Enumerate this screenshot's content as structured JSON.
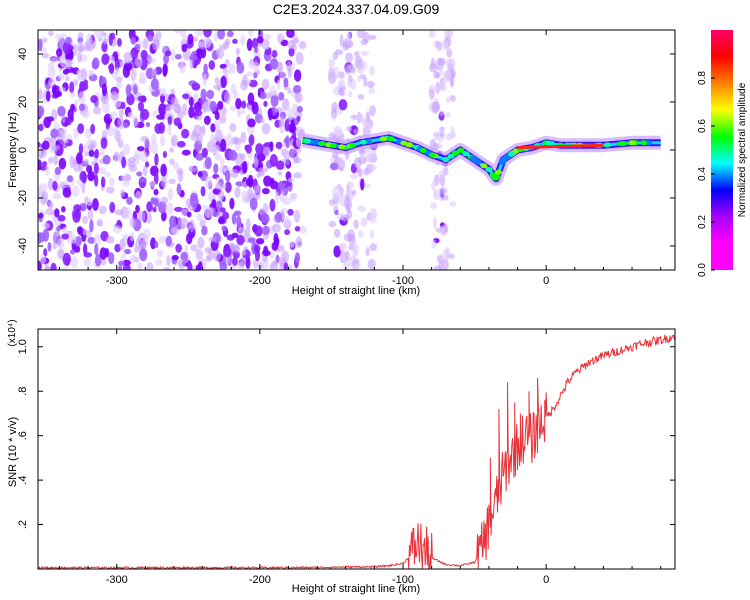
{
  "figure": {
    "title": "C2E3.2024.337.04.09.G09"
  },
  "chart_data": [
    {
      "type": "heatmap",
      "title": "C2E3.2024.337.04.09.G09",
      "xlabel": "Height of straight line (km)",
      "ylabel": "Frequency (Hz)",
      "xlim": [
        -355,
        90
      ],
      "ylim": [
        -50,
        50
      ],
      "xticks": [
        -300,
        -200,
        -100,
        0
      ],
      "yticks": [
        -40,
        -20,
        0,
        20,
        40
      ],
      "colorbar": {
        "label": "Normalized spectral amplitude",
        "range": [
          0,
          1
        ],
        "ticks": [
          0.0,
          0.2,
          0.4,
          0.6,
          0.8
        ],
        "colormap": [
          "#ff00ff",
          "#ff00ff",
          "#aa00ff",
          "#0000ff",
          "#00ffff",
          "#00ff00",
          "#ffff00",
          "#ff8000",
          "#ff0000",
          "#ff0066"
        ]
      },
      "dominant_frequency_track": {
        "x": [
          -170,
          -160,
          -150,
          -140,
          -130,
          -120,
          -110,
          -100,
          -90,
          -80,
          -70,
          -60,
          -50,
          -40,
          -35,
          -30,
          -25,
          -20,
          -10,
          0,
          10,
          20,
          40,
          60,
          80
        ],
        "y": [
          4,
          3,
          2,
          1,
          3,
          4,
          5,
          3,
          1,
          -2,
          -4,
          0,
          -4,
          -8,
          -12,
          -4,
          -2,
          0,
          1,
          3,
          2,
          2,
          2,
          3,
          3
        ]
      },
      "noise_dominated_region_x": [
        -355,
        -170
      ]
    },
    {
      "type": "line",
      "xlabel": "Height of straight line (km)",
      "ylabel": "SNR (10 * v/v)",
      "y_multiplier": "(x10⁴)",
      "xlim": [
        -355,
        90
      ],
      "ylim": [
        0,
        1.08
      ],
      "xticks": [
        -300,
        -200,
        -100,
        0
      ],
      "yticks": [
        0.2,
        0.4,
        0.6,
        0.8,
        1.0
      ],
      "series": [
        {
          "color": "#e8333a",
          "x": [
            -355,
            -300,
            -250,
            -200,
            -160,
            -140,
            -120,
            -110,
            -100,
            -95,
            -90,
            -85,
            -80,
            -70,
            -60,
            -50,
            -45,
            -40,
            -35,
            -30,
            -25,
            -20,
            -15,
            -10,
            -5,
            0,
            5,
            10,
            15,
            20,
            30,
            40,
            50,
            60,
            70,
            80,
            90
          ],
          "y": [
            0.006,
            0.006,
            0.006,
            0.006,
            0.007,
            0.009,
            0.01,
            0.015,
            0.025,
            0.06,
            0.12,
            0.08,
            0.05,
            0.02,
            0.015,
            0.03,
            0.09,
            0.2,
            0.3,
            0.42,
            0.5,
            0.55,
            0.6,
            0.58,
            0.65,
            0.68,
            0.72,
            0.78,
            0.84,
            0.88,
            0.93,
            0.96,
            0.98,
            1.0,
            1.02,
            1.03,
            1.05
          ],
          "peaks": [
            [
              -39,
              0.5
            ],
            [
              -33,
              0.72
            ],
            [
              -27,
              0.84
            ],
            [
              -22,
              0.75
            ],
            [
              -18,
              0.7
            ],
            [
              -12,
              0.8
            ],
            [
              -6,
              0.86
            ],
            [
              -1,
              0.76
            ]
          ]
        }
      ]
    }
  ]
}
